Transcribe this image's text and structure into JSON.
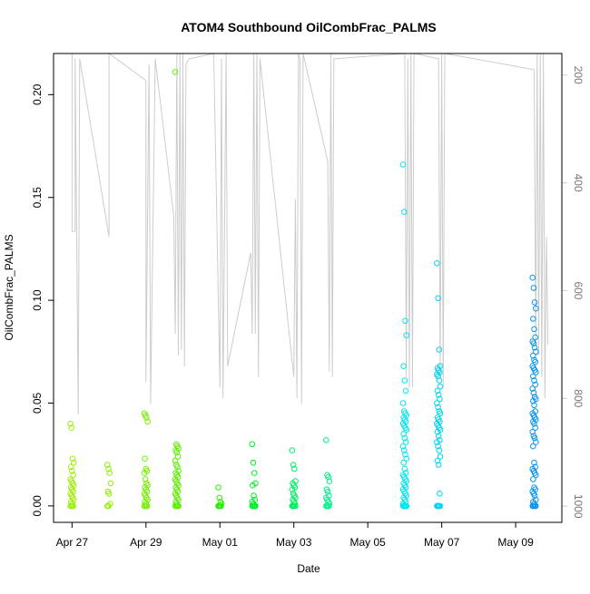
{
  "chart_data": {
    "type": "scatter",
    "title": "ATOM4 Southbound OilCombFrac_PALMS",
    "xlabel": "Date",
    "ylabel": "OilCombFrac_PALMS",
    "xlim": [
      "2018-04-26T12:00",
      "2018-05-10T06:00"
    ],
    "ylim": [
      -0.008,
      0.22
    ],
    "x_ticks": [
      {
        "date": "2018-04-27",
        "label": "Apr 27"
      },
      {
        "date": "2018-04-29",
        "label": "Apr 29"
      },
      {
        "date": "2018-05-01",
        "label": "May 01"
      },
      {
        "date": "2018-05-03",
        "label": "May 03"
      },
      {
        "date": "2018-05-05",
        "label": "May 05"
      },
      {
        "date": "2018-05-07",
        "label": "May 07"
      },
      {
        "date": "2018-05-09",
        "label": "May 09"
      }
    ],
    "y_ticks": [
      0.0,
      0.05,
      0.1,
      0.15,
      0.2
    ],
    "y_tick_labels": [
      "0.00",
      "0.05",
      "0.10",
      "0.15",
      "0.20"
    ],
    "secondary_axis": {
      "quantity": "pressure",
      "inverted": true,
      "ticks": [
        200,
        400,
        600,
        800,
        1000
      ],
      "tick_labels": [
        "200",
        "400",
        "600",
        "800",
        "1000"
      ],
      "range": [
        160,
        1030
      ],
      "line_color": "#cccccc"
    },
    "grid": false,
    "legend": "none",
    "color_scale": "points colored by time: yellow-green (Apr 27) to blue (May 09)",
    "flights": [
      {
        "date": "2018-04-27T00:00",
        "color": "#9cf000",
        "values": [
          0.04,
          0.038,
          0.023,
          0.021,
          0.019,
          0.017,
          0.015,
          0.013,
          0.012,
          0.011,
          0.01,
          0.009,
          0.008,
          0.007,
          0.006,
          0.005,
          0.004,
          0.003,
          0.002,
          0.001,
          0.0,
          0.0,
          0.0,
          0.0
        ]
      },
      {
        "date": "2018-04-28T00:00",
        "color": "#8ef000",
        "values": [
          0.02,
          0.018,
          0.016,
          0.011,
          0.007,
          0.006,
          0.001,
          0.0,
          0.0
        ]
      },
      {
        "date": "2018-04-29T00:00",
        "color": "#74f000",
        "values": [
          0.045,
          0.044,
          0.043,
          0.041,
          0.023,
          0.018,
          0.017,
          0.016,
          0.013,
          0.011,
          0.01,
          0.009,
          0.008,
          0.007,
          0.006,
          0.005,
          0.004,
          0.003,
          0.002,
          0.001,
          0.0,
          0.0,
          0.0,
          0.0
        ]
      },
      {
        "date": "2018-04-29T20:00",
        "color": "#5cf000",
        "values": [
          0.211,
          0.03,
          0.029,
          0.028,
          0.027,
          0.026,
          0.024,
          0.022,
          0.02,
          0.019,
          0.017,
          0.016,
          0.015,
          0.014,
          0.013,
          0.012,
          0.011,
          0.01,
          0.009,
          0.008,
          0.007,
          0.006,
          0.005,
          0.004,
          0.003,
          0.002,
          0.001,
          0.0,
          0.0,
          0.0,
          0.0,
          0.0
        ]
      },
      {
        "date": "2018-05-01T00:00",
        "color": "#26f000",
        "values": [
          0.009,
          0.004,
          0.002,
          0.001,
          0.0,
          0.0,
          0.0,
          0.0,
          0.0,
          0.0
        ]
      },
      {
        "date": "2018-05-01T22:00",
        "color": "#00f026",
        "values": [
          0.03,
          0.021,
          0.016,
          0.011,
          0.01,
          0.005,
          0.003,
          0.002,
          0.001,
          0.0,
          0.0,
          0.0,
          0.0,
          0.0,
          0.0
        ]
      },
      {
        "date": "2018-05-03T00:00",
        "color": "#00f060",
        "values": [
          0.027,
          0.02,
          0.018,
          0.012,
          0.011,
          0.01,
          0.009,
          0.008,
          0.006,
          0.005,
          0.004,
          0.003,
          0.002,
          0.001,
          0.0,
          0.0,
          0.0,
          0.0,
          0.0,
          0.0
        ]
      },
      {
        "date": "2018-05-03T22:00",
        "color": "#00f08a",
        "values": [
          0.032,
          0.015,
          0.014,
          0.012,
          0.008,
          0.007,
          0.005,
          0.004,
          0.003,
          0.002,
          0.001,
          0.0,
          0.0,
          0.0,
          0.0
        ]
      },
      {
        "date": "2018-05-06T00:00",
        "color": "#00e8f0",
        "values": [
          0.166,
          0.143,
          0.09,
          0.083,
          0.068,
          0.061,
          0.056,
          0.05,
          0.046,
          0.045,
          0.044,
          0.043,
          0.042,
          0.041,
          0.04,
          0.039,
          0.038,
          0.037,
          0.035,
          0.033,
          0.031,
          0.029,
          0.027,
          0.025,
          0.023,
          0.021,
          0.018,
          0.016,
          0.015,
          0.014,
          0.013,
          0.012,
          0.011,
          0.01,
          0.009,
          0.008,
          0.007,
          0.006,
          0.005,
          0.004,
          0.003,
          0.002,
          0.001,
          0.0,
          0.0,
          0.0,
          0.0,
          0.0,
          0.0,
          0.0,
          0.0,
          0.0,
          0.0
        ]
      },
      {
        "date": "2018-05-06T22:00",
        "color": "#00d4f0",
        "values": [
          0.118,
          0.101,
          0.076,
          0.068,
          0.067,
          0.066,
          0.065,
          0.064,
          0.063,
          0.061,
          0.058,
          0.056,
          0.054,
          0.052,
          0.05,
          0.048,
          0.046,
          0.045,
          0.043,
          0.042,
          0.041,
          0.04,
          0.039,
          0.038,
          0.037,
          0.036,
          0.034,
          0.032,
          0.031,
          0.029,
          0.027,
          0.024,
          0.022,
          0.02,
          0.006,
          0.0,
          0.0,
          0.0,
          0.0,
          0.0,
          0.0
        ]
      },
      {
        "date": "2018-05-09T12:00",
        "color": "#0a96f0",
        "values": [
          0.111,
          0.106,
          0.099,
          0.096,
          0.091,
          0.086,
          0.082,
          0.08,
          0.079,
          0.077,
          0.075,
          0.073,
          0.071,
          0.07,
          0.068,
          0.067,
          0.066,
          0.065,
          0.063,
          0.061,
          0.059,
          0.057,
          0.055,
          0.053,
          0.052,
          0.051,
          0.049,
          0.046,
          0.045,
          0.044,
          0.043,
          0.042,
          0.041,
          0.04,
          0.038,
          0.036,
          0.034,
          0.033,
          0.031,
          0.029,
          0.021,
          0.019,
          0.018,
          0.017,
          0.016,
          0.015,
          0.013,
          0.009,
          0.008,
          0.007,
          0.006,
          0.005,
          0.003,
          0.002,
          0.001,
          0.0,
          0.0,
          0.0,
          0.0,
          0.0,
          0.0
        ]
      }
    ],
    "secondary_series": {
      "name": "Pressure",
      "color": "#cccccc",
      "points": [
        [
          "2018-04-27T00:00",
          160
        ],
        [
          "2018-04-27T00:00",
          490
        ],
        [
          "2018-04-27T02:00",
          490
        ],
        [
          "2018-04-27T02:00",
          170
        ],
        [
          "2018-04-27T04:00",
          830
        ],
        [
          "2018-04-27T05:00",
          170
        ],
        [
          "2018-04-28T00:00",
          500
        ],
        [
          "2018-04-28T00:00",
          160
        ],
        [
          "2018-04-29T00:00",
          210
        ],
        [
          "2018-04-29T00:00",
          770
        ],
        [
          "2018-04-29T02:00",
          180
        ],
        [
          "2018-04-29T03:00",
          810
        ],
        [
          "2018-04-29T06:00",
          170
        ],
        [
          "2018-04-29T18:00",
          460
        ],
        [
          "2018-04-29T19:00",
          680
        ],
        [
          "2018-04-29T20:00",
          160
        ],
        [
          "2018-04-29T21:00",
          720
        ],
        [
          "2018-04-29T22:00",
          160
        ],
        [
          "2018-04-29T23:00",
          710
        ],
        [
          "2018-04-30T00:00",
          160
        ],
        [
          "2018-04-30T01:00",
          740
        ],
        [
          "2018-04-30T02:00",
          180
        ],
        [
          "2018-04-30T04:00",
          170
        ],
        [
          "2018-04-30T20:00",
          160
        ],
        [
          "2018-05-01T00:00",
          780
        ],
        [
          "2018-05-01T01:00",
          170
        ],
        [
          "2018-05-01T02:00",
          800
        ],
        [
          "2018-05-01T04:00",
          160
        ],
        [
          "2018-05-01T05:00",
          740
        ],
        [
          "2018-05-01T20:00",
          530
        ],
        [
          "2018-05-01T21:00",
          680
        ],
        [
          "2018-05-01T22:00",
          160
        ],
        [
          "2018-05-01T23:00",
          680
        ],
        [
          "2018-05-02T00:00",
          160
        ],
        [
          "2018-05-02T01:00",
          760
        ],
        [
          "2018-05-02T02:00",
          170
        ],
        [
          "2018-05-03T00:00",
          760
        ],
        [
          "2018-05-03T01:00",
          430
        ],
        [
          "2018-05-03T02:00",
          800
        ],
        [
          "2018-05-03T03:00",
          160
        ],
        [
          "2018-05-03T04:00",
          170
        ],
        [
          "2018-05-03T05:00",
          810
        ],
        [
          "2018-05-03T06:00",
          160
        ],
        [
          "2018-05-03T22:00",
          360
        ],
        [
          "2018-05-03T23:00",
          750
        ],
        [
          "2018-05-04T00:00",
          160
        ],
        [
          "2018-05-04T01:00",
          760
        ],
        [
          "2018-05-04T02:00",
          170
        ],
        [
          "2018-05-06T00:00",
          160
        ],
        [
          "2018-05-06T01:00",
          760
        ],
        [
          "2018-05-06T02:00",
          170
        ],
        [
          "2018-05-06T03:00",
          780
        ],
        [
          "2018-05-06T04:00",
          160
        ],
        [
          "2018-05-06T05:00",
          780
        ],
        [
          "2018-05-06T06:00",
          160
        ],
        [
          "2018-05-06T22:00",
          170
        ],
        [
          "2018-05-06T23:00",
          760
        ],
        [
          "2018-05-07T00:00",
          160
        ],
        [
          "2018-05-07T01:00",
          780
        ],
        [
          "2018-05-07T02:00",
          160
        ],
        [
          "2018-05-09T12:00",
          190
        ],
        [
          "2018-05-09T13:00",
          700
        ],
        [
          "2018-05-09T14:00",
          160
        ],
        [
          "2018-05-09T15:00",
          720
        ],
        [
          "2018-05-09T16:00",
          160
        ],
        [
          "2018-05-09T17:00",
          760
        ],
        [
          "2018-05-09T18:00",
          160
        ],
        [
          "2018-05-09T19:00",
          800
        ],
        [
          "2018-05-09T20:00",
          500
        ],
        [
          "2018-05-09T21:00",
          700
        ]
      ]
    }
  }
}
